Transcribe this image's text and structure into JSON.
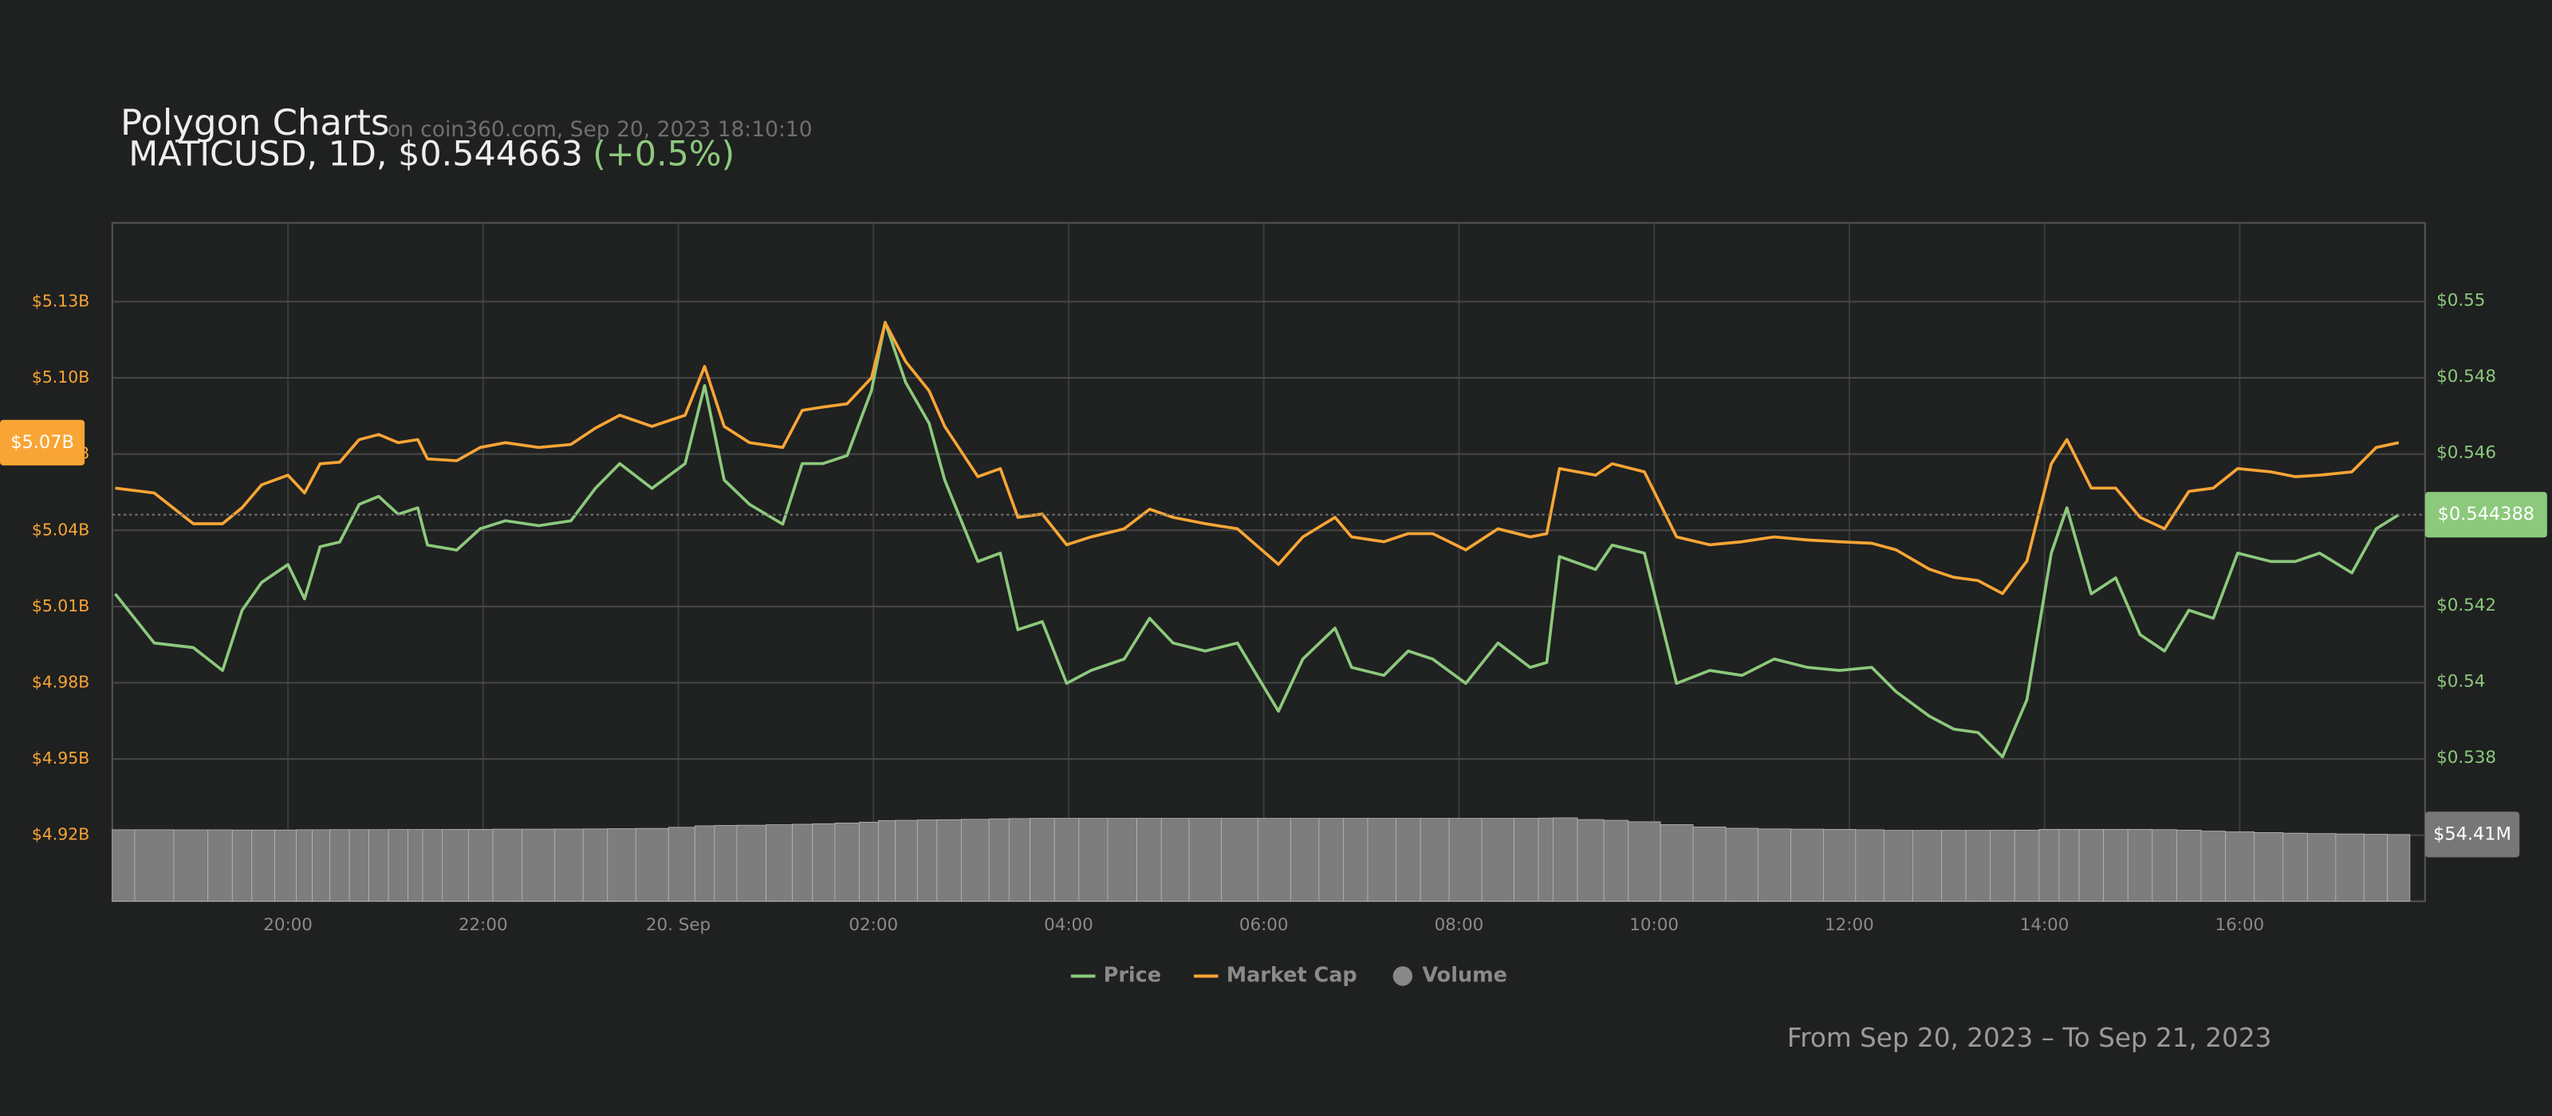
{
  "chart_data": {
    "type": "line",
    "title": "Polygon Charts",
    "subtitle": "on coin360.com, Sep 20, 2023 18:10:10",
    "symbol_line": "MATICUSD, 1D, $0.544663",
    "change": "(+0.5%)",
    "footer": "From Sep 20, 2023 – To Sep 21, 2023",
    "x": [
      18.23,
      18.63,
      19.03,
      19.33,
      19.53,
      19.73,
      20.0,
      20.17,
      20.33,
      20.53,
      20.73,
      20.93,
      21.13,
      21.33,
      21.43,
      21.73,
      21.97,
      22.23,
      22.57,
      22.9,
      23.15,
      23.4,
      23.73,
      24.07,
      24.27,
      24.47,
      24.73,
      25.07,
      25.27,
      25.48,
      25.73,
      25.98,
      26.12,
      26.33,
      26.57,
      26.73,
      27.07,
      27.3,
      27.48,
      27.73,
      27.98,
      28.23,
      28.57,
      28.83,
      29.07,
      29.4,
      29.73,
      30.15,
      30.4,
      30.73,
      30.9,
      31.23,
      31.48,
      31.73,
      32.07,
      32.4,
      32.73,
      32.9,
      33.03,
      33.4,
      33.57,
      33.9,
      34.23,
      34.57,
      34.9,
      35.23,
      35.57,
      35.9,
      36.23,
      36.48,
      36.82,
      37.07,
      37.32,
      37.57,
      37.82,
      38.07,
      38.23,
      38.48,
      38.73,
      38.98,
      39.23,
      39.48,
      39.73,
      39.98,
      40.32,
      40.57,
      40.82,
      41.15,
      41.4,
      41.63
    ],
    "xlim": [
      18.2,
      41.9
    ],
    "xticks": [
      {
        "value": 20,
        "label": "20:00"
      },
      {
        "value": 22,
        "label": "22:00"
      },
      {
        "value": 24,
        "label": "20. Sep"
      },
      {
        "value": 26,
        "label": "02:00"
      },
      {
        "value": 28,
        "label": "04:00"
      },
      {
        "value": 30,
        "label": "06:00"
      },
      {
        "value": 32,
        "label": "08:00"
      },
      {
        "value": 34,
        "label": "10:00"
      },
      {
        "value": 36,
        "label": "12:00"
      },
      {
        "value": 38,
        "label": "14:00"
      },
      {
        "value": 40,
        "label": "16:00"
      }
    ],
    "ylim": [
      4.894,
      5.161
    ],
    "yticks": [
      {
        "value": 5.13,
        "label": "$5.13B"
      },
      {
        "value": 5.1,
        "label": "$5.10B"
      },
      {
        "value": 5.07,
        "label": "$5.07B"
      },
      {
        "value": 5.04,
        "label": "$5.04B"
      },
      {
        "value": 5.01,
        "label": "$5.01B"
      },
      {
        "value": 4.98,
        "label": "$4.98B"
      },
      {
        "value": 4.95,
        "label": "$4.95B"
      },
      {
        "value": 4.92,
        "label": "$4.92B"
      }
    ],
    "y2lim": [
      0.53424,
      0.55205
    ],
    "y2ticks": [
      {
        "value": 0.55,
        "label": "$0.55"
      },
      {
        "value": 0.548,
        "label": "$0.548"
      },
      {
        "value": 0.546,
        "label": "$0.546"
      },
      {
        "value": 0.542,
        "label": "$0.542"
      },
      {
        "value": 0.54,
        "label": "$0.54"
      },
      {
        "value": 0.538,
        "label": "$0.538"
      }
    ],
    "y3lim": [
      0,
      553
    ],
    "grid": true,
    "legend": "bottom",
    "series": [
      {
        "name": "Price",
        "color": "#8cc97c",
        "axis": "y2",
        "last_label": "$0.544388",
        "values": [
          0.54231,
          0.54102,
          0.5409,
          0.5403,
          0.54188,
          0.54261,
          0.54308,
          0.54218,
          0.54355,
          0.54367,
          0.54466,
          0.54487,
          0.5444,
          0.54457,
          0.54359,
          0.54346,
          0.54402,
          0.54423,
          0.5441,
          0.54423,
          0.54508,
          0.54573,
          0.54508,
          0.54573,
          0.54778,
          0.5453,
          0.54466,
          0.54414,
          0.54573,
          0.54573,
          0.54594,
          0.54765,
          0.54944,
          0.54786,
          0.54679,
          0.5453,
          0.54316,
          0.54338,
          0.54137,
          0.54158,
          0.53996,
          0.5403,
          0.5406,
          0.54167,
          0.54102,
          0.54081,
          0.54102,
          0.53923,
          0.5406,
          0.54141,
          0.54038,
          0.54017,
          0.54081,
          0.5406,
          0.53996,
          0.54102,
          0.54038,
          0.54051,
          0.54329,
          0.54295,
          0.54359,
          0.54338,
          0.53996,
          0.5403,
          0.54017,
          0.5406,
          0.54038,
          0.5403,
          0.54038,
          0.53974,
          0.5391,
          0.53876,
          0.53867,
          0.53803,
          0.53953,
          0.54338,
          0.54457,
          0.54231,
          0.54273,
          0.54124,
          0.54081,
          0.54188,
          0.54167,
          0.54338,
          0.54316,
          0.54316,
          0.54338,
          0.54286,
          0.54402,
          0.544388
        ]
      },
      {
        "name": "Market Cap",
        "color": "#f9a535",
        "axis": "y",
        "last_label": "$5.07B",
        "values": [
          5.0566,
          5.0547,
          5.0426,
          5.0426,
          5.0489,
          5.0579,
          5.0617,
          5.0547,
          5.0662,
          5.0668,
          5.0757,
          5.0777,
          5.0745,
          5.0757,
          5.0681,
          5.0674,
          5.0726,
          5.0745,
          5.0726,
          5.0738,
          5.0802,
          5.0853,
          5.0809,
          5.0853,
          5.1045,
          5.0809,
          5.0745,
          5.0726,
          5.0872,
          5.0885,
          5.0898,
          5.1,
          5.1217,
          5.1064,
          5.0949,
          5.0809,
          5.0611,
          5.0643,
          5.0451,
          5.0464,
          5.0343,
          5.0374,
          5.0406,
          5.0483,
          5.0451,
          5.0426,
          5.0406,
          5.0266,
          5.0374,
          5.0451,
          5.0374,
          5.0355,
          5.0387,
          5.0387,
          5.0323,
          5.0406,
          5.0374,
          5.0387,
          5.0643,
          5.0617,
          5.0662,
          5.063,
          5.0374,
          5.0343,
          5.0355,
          5.0374,
          5.0362,
          5.0355,
          5.0349,
          5.0323,
          5.0247,
          5.0215,
          5.0202,
          5.0151,
          5.0279,
          5.0662,
          5.0757,
          5.0566,
          5.0566,
          5.0451,
          5.0406,
          5.0553,
          5.0566,
          5.0643,
          5.063,
          5.0611,
          5.0617,
          5.063,
          5.0726,
          5.0745
        ]
      },
      {
        "name": "Volume",
        "type": "bar",
        "color": "#7d7d7d",
        "axis": "y3",
        "last_label": "$54.41M",
        "values": [
          58.3,
          58.3,
          58.2,
          58.2,
          58.1,
          58.1,
          58.1,
          58.3,
          58.3,
          58.4,
          58.4,
          58.4,
          58.5,
          58.5,
          58.5,
          58.6,
          58.6,
          58.8,
          58.8,
          58.9,
          59.0,
          59.2,
          59.4,
          60.3,
          61.5,
          61.8,
          62.0,
          62.4,
          62.8,
          63.2,
          63.8,
          64.5,
          65.8,
          66.0,
          66.3,
          66.5,
          66.8,
          67.2,
          67.4,
          67.6,
          67.6,
          67.6,
          67.6,
          67.6,
          67.6,
          67.6,
          67.6,
          67.6,
          67.6,
          67.6,
          67.6,
          67.6,
          67.6,
          67.6,
          67.6,
          67.6,
          67.6,
          67.8,
          68.0,
          66.6,
          66.0,
          64.8,
          62.5,
          60.6,
          59.5,
          59.0,
          58.8,
          58.6,
          58.3,
          57.8,
          57.8,
          57.8,
          57.8,
          57.9,
          58.0,
          58.6,
          58.6,
          58.6,
          58.6,
          58.6,
          58.4,
          58.0,
          57.2,
          56.6,
          56.0,
          55.5,
          55.2,
          54.9,
          54.6,
          54.41
        ]
      }
    ]
  }
}
